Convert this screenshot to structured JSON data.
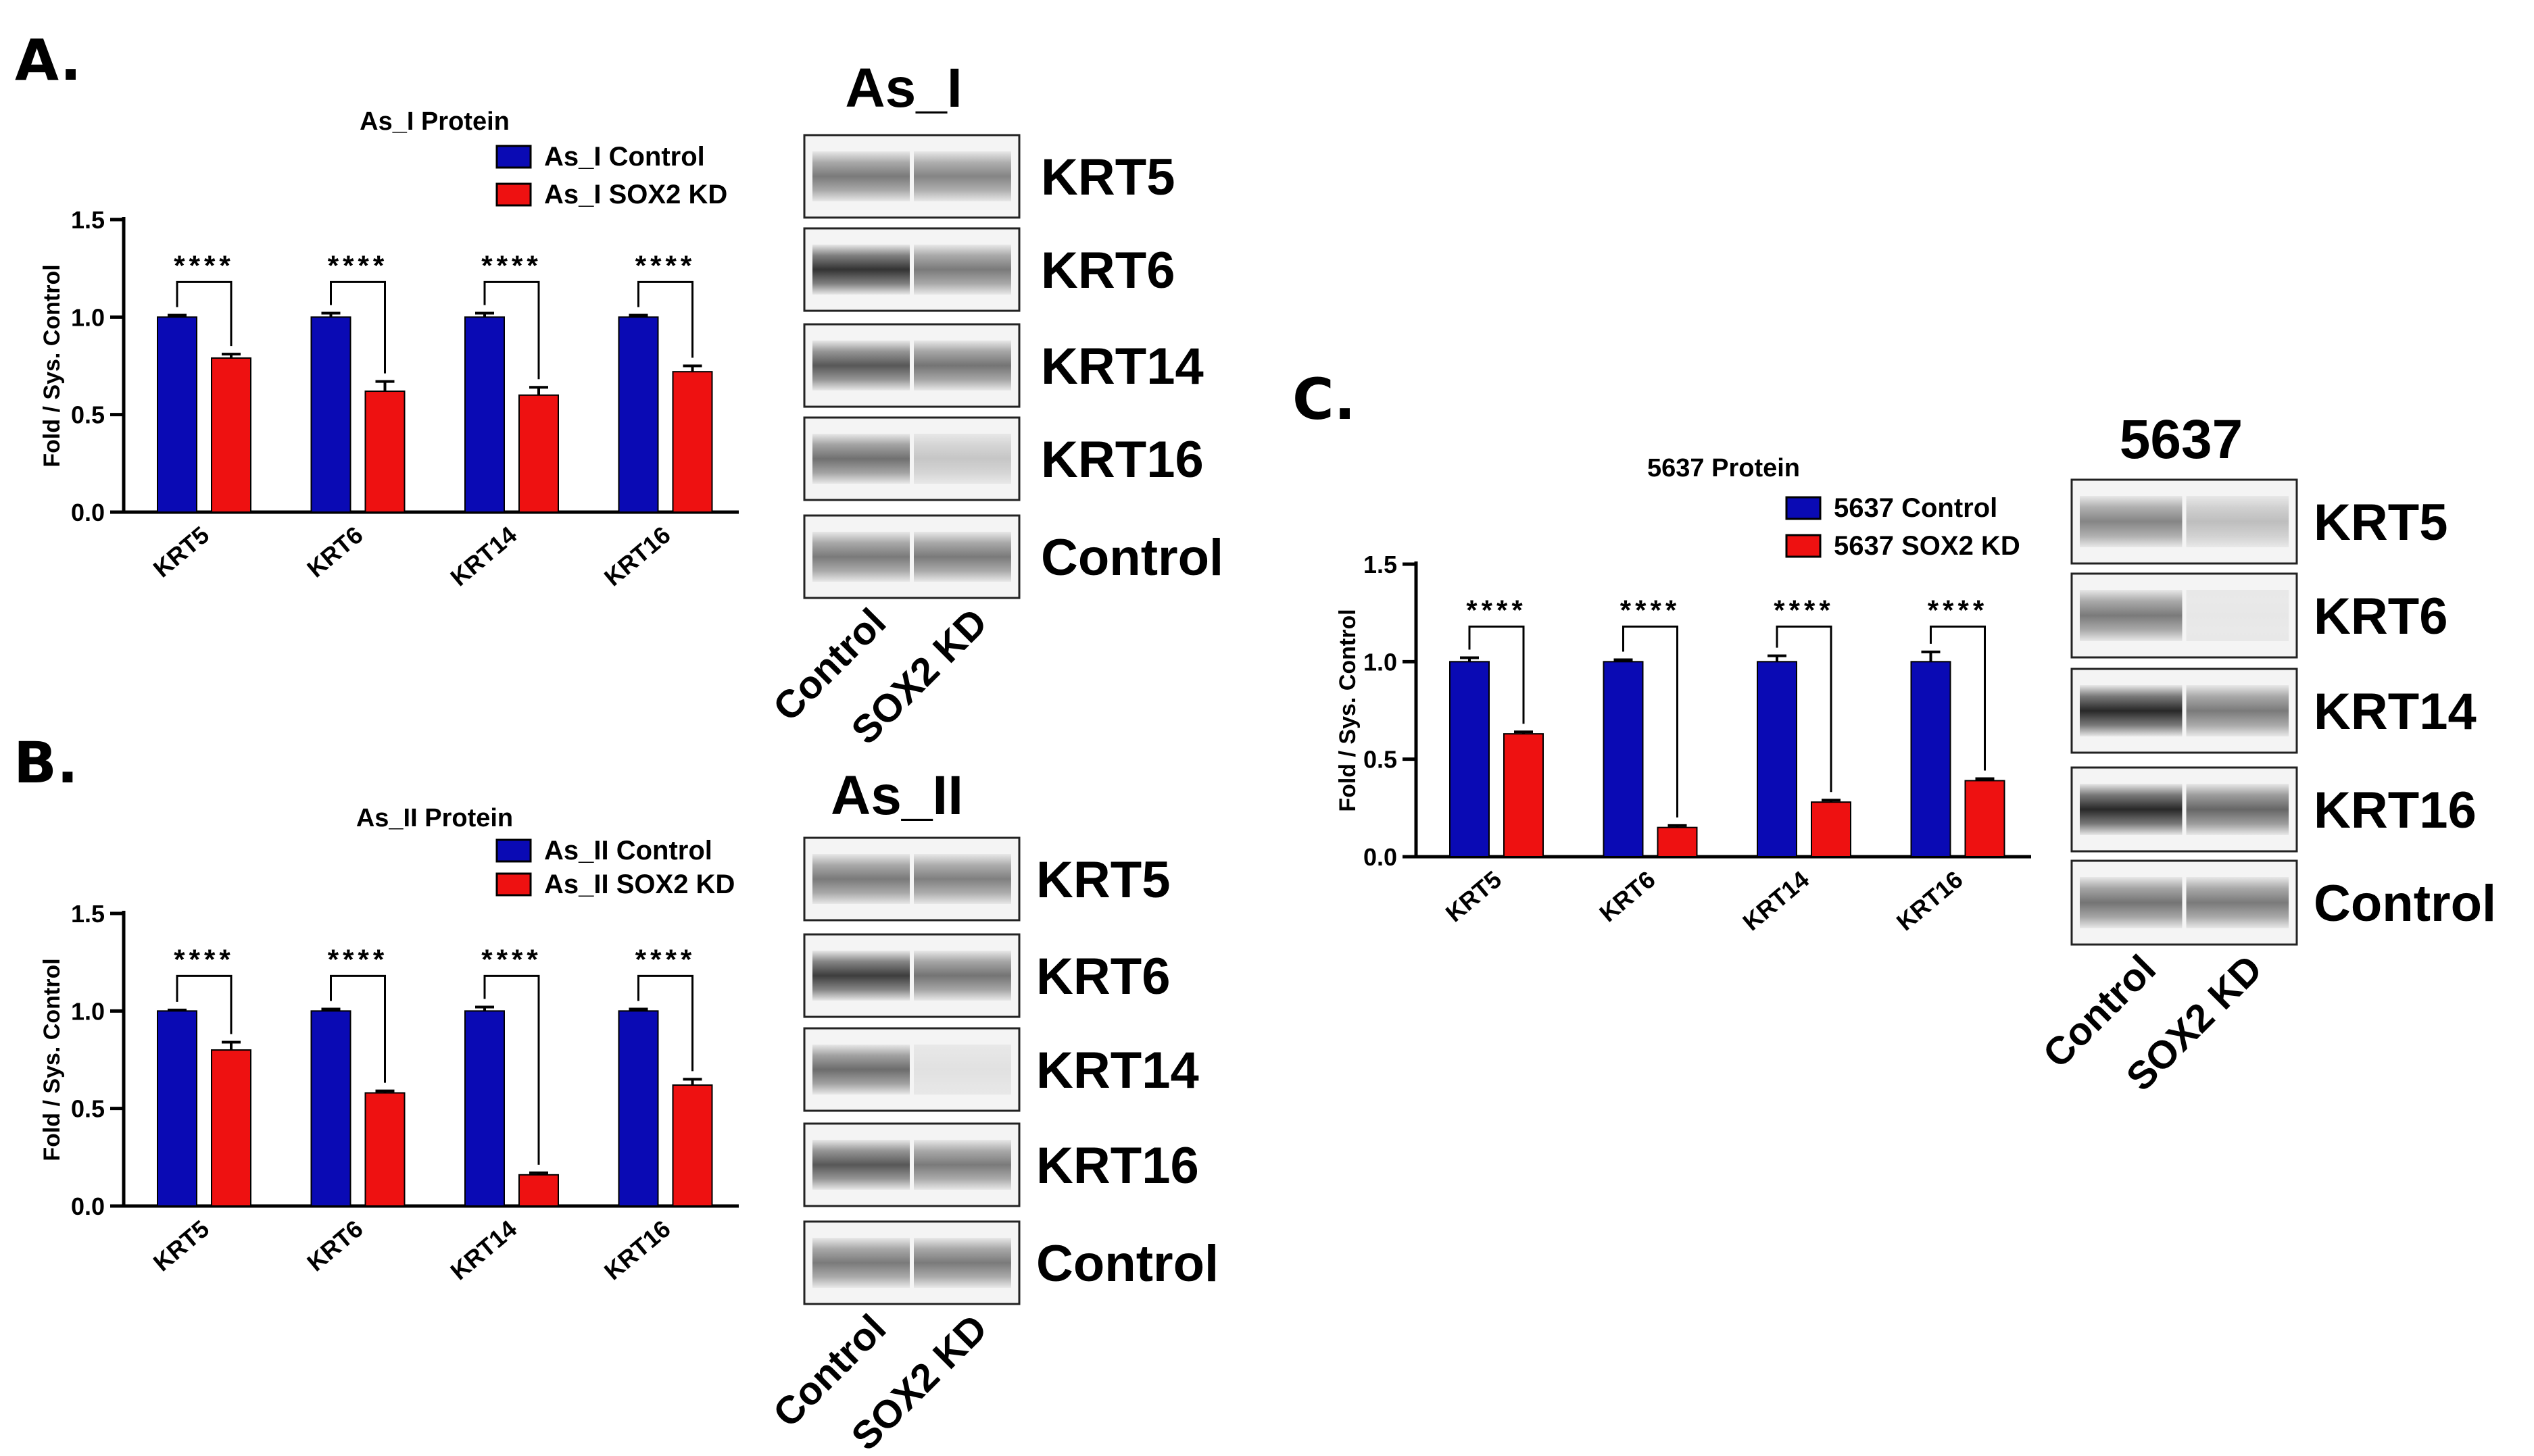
{
  "panels": {
    "A": {
      "letter": "A."
    },
    "B": {
      "letter": "B."
    },
    "C": {
      "letter": "C."
    }
  },
  "chart_data": [
    {
      "id": "A",
      "type": "bar",
      "title": "As_I Protein",
      "xlabel": "",
      "ylabel": "Fold / Sys. Control",
      "ylim": [
        0,
        1.5
      ],
      "yticks": [
        "0.0",
        "0.5",
        "1.0",
        "1.5"
      ],
      "categories": [
        "KRT5",
        "KRT6",
        "KRT14",
        "KRT16"
      ],
      "series": [
        {
          "name": "As_I Control",
          "color": "#0a0ab4",
          "values": [
            1.0,
            1.0,
            1.0,
            1.0
          ],
          "errors": [
            0.01,
            0.02,
            0.02,
            0.01
          ]
        },
        {
          "name": "As_I SOX2 KD",
          "color": "#ee1111",
          "values": [
            0.79,
            0.62,
            0.6,
            0.72
          ],
          "errors": [
            0.02,
            0.05,
            0.04,
            0.03
          ]
        }
      ],
      "significance": [
        "****",
        "****",
        "****",
        "****"
      ],
      "legend": "top-right"
    },
    {
      "id": "B",
      "type": "bar",
      "title": "As_II Protein",
      "xlabel": "",
      "ylabel": "Fold / Sys. Control",
      "ylim": [
        0,
        1.5
      ],
      "yticks": [
        "0.0",
        "0.5",
        "1.0",
        "1.5"
      ],
      "categories": [
        "KRT5",
        "KRT6",
        "KRT14",
        "KRT16"
      ],
      "series": [
        {
          "name": "As_II Control",
          "color": "#0a0ab4",
          "values": [
            1.0,
            1.0,
            1.0,
            1.0
          ],
          "errors": [
            0.005,
            0.01,
            0.02,
            0.01
          ]
        },
        {
          "name": "As_II SOX2 KD",
          "color": "#ee1111",
          "values": [
            0.8,
            0.58,
            0.16,
            0.62
          ],
          "errors": [
            0.04,
            0.01,
            0.01,
            0.03
          ]
        }
      ],
      "significance": [
        "****",
        "****",
        "****",
        "****"
      ],
      "legend": "top-right"
    },
    {
      "id": "C",
      "type": "bar",
      "title": "5637 Protein",
      "xlabel": "",
      "ylabel": "Fold / Sys. Control",
      "ylim": [
        0,
        1.5
      ],
      "yticks": [
        "0.0",
        "0.5",
        "1.0",
        "1.5"
      ],
      "categories": [
        "KRT5",
        "KRT6",
        "KRT14",
        "KRT16"
      ],
      "series": [
        {
          "name": "5637 Control",
          "color": "#0a0ab4",
          "values": [
            1.0,
            1.0,
            1.0,
            1.0
          ],
          "errors": [
            0.02,
            0.01,
            0.03,
            0.05
          ]
        },
        {
          "name": "5637 SOX2 KD",
          "color": "#ee1111",
          "values": [
            0.63,
            0.15,
            0.28,
            0.39
          ],
          "errors": [
            0.01,
            0.01,
            0.01,
            0.01
          ]
        }
      ],
      "significance": [
        "****",
        "****",
        "****",
        "****"
      ],
      "legend": "top-right"
    }
  ],
  "blots": [
    {
      "id": "A",
      "title": "As_I",
      "lanes": [
        "Control",
        "SOX2 KD"
      ],
      "rows": [
        {
          "label": "KRT5",
          "intensity": [
            0.55,
            0.5
          ]
        },
        {
          "label": "KRT6",
          "intensity": [
            0.9,
            0.55
          ]
        },
        {
          "label": "KRT14",
          "intensity": [
            0.72,
            0.58
          ]
        },
        {
          "label": "KRT16",
          "intensity": [
            0.6,
            0.18
          ]
        },
        {
          "label": "Control",
          "intensity": [
            0.55,
            0.55
          ]
        }
      ]
    },
    {
      "id": "B",
      "title": "As_II",
      "lanes": [
        "Control",
        "SOX2 KD"
      ],
      "rows": [
        {
          "label": "KRT5",
          "intensity": [
            0.55,
            0.52
          ]
        },
        {
          "label": "KRT6",
          "intensity": [
            0.85,
            0.58
          ]
        },
        {
          "label": "KRT14",
          "intensity": [
            0.62,
            0.05
          ]
        },
        {
          "label": "KRT16",
          "intensity": [
            0.72,
            0.55
          ]
        },
        {
          "label": "Control",
          "intensity": [
            0.55,
            0.55
          ]
        }
      ]
    },
    {
      "id": "C",
      "title": "5637",
      "lanes": [
        "Control",
        "SOX2 KD"
      ],
      "rows": [
        {
          "label": "KRT5",
          "intensity": [
            0.5,
            0.22
          ]
        },
        {
          "label": "KRT6",
          "intensity": [
            0.55,
            0.02
          ]
        },
        {
          "label": "KRT14",
          "intensity": [
            0.95,
            0.55
          ]
        },
        {
          "label": "KRT16",
          "intensity": [
            0.95,
            0.65
          ]
        },
        {
          "label": "Control",
          "intensity": [
            0.58,
            0.55
          ]
        }
      ]
    }
  ]
}
